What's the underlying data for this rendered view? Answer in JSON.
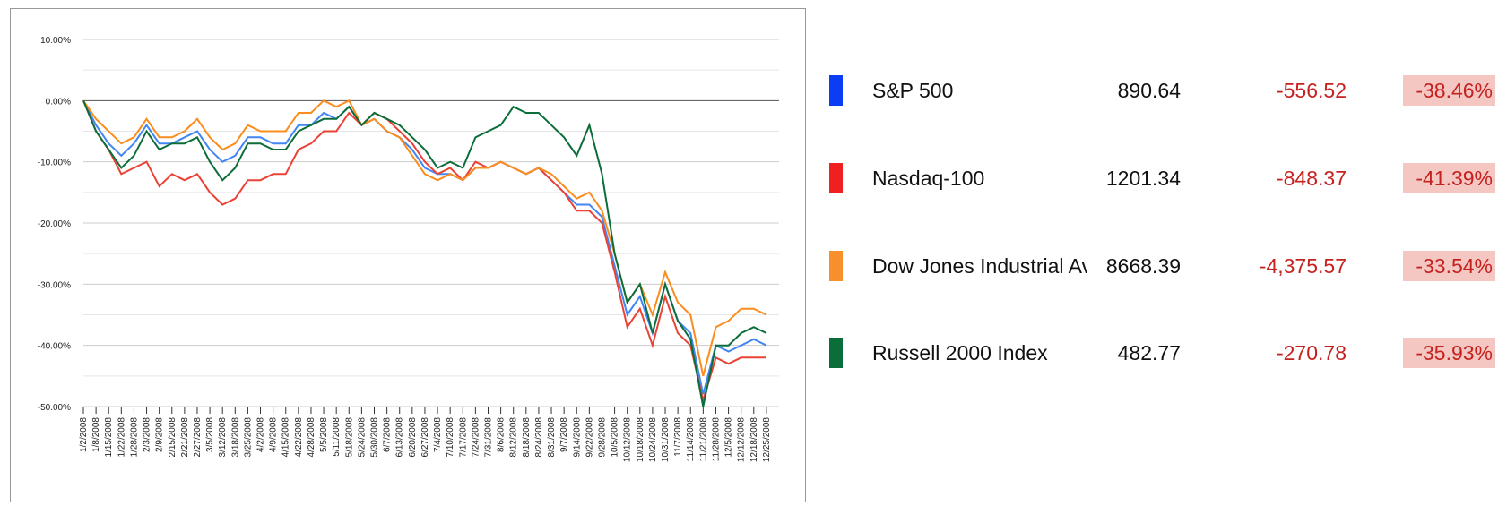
{
  "chart_data": {
    "type": "line",
    "categories": [
      "1/2/2008",
      "1/8/2008",
      "1/15/2008",
      "1/22/2008",
      "1/28/2008",
      "2/3/2008",
      "2/9/2008",
      "2/15/2008",
      "2/21/2008",
      "2/27/2008",
      "3/5/2008",
      "3/12/2008",
      "3/18/2008",
      "3/25/2008",
      "4/2/2008",
      "4/9/2008",
      "4/15/2008",
      "4/22/2008",
      "4/28/2008",
      "5/5/2008",
      "5/11/2008",
      "5/18/2008",
      "5/24/2008",
      "5/30/2008",
      "6/7/2008",
      "6/13/2008",
      "6/20/2008",
      "6/27/2008",
      "7/4/2008",
      "7/10/2008",
      "7/17/2008",
      "7/24/2008",
      "7/31/2008",
      "8/6/2008",
      "8/12/2008",
      "8/18/2008",
      "8/24/2008",
      "8/31/2008",
      "9/7/2008",
      "9/14/2008",
      "9/22/2008",
      "9/28/2008",
      "10/5/2008",
      "10/12/2008",
      "10/18/2008",
      "10/24/2008",
      "10/31/2008",
      "11/7/2008",
      "11/14/2008",
      "11/21/2008",
      "11/28/2008",
      "12/5/2008",
      "12/12/2008",
      "12/18/2008",
      "12/25/2008"
    ],
    "series": [
      {
        "color": "#4285f4",
        "values": [
          0,
          -4,
          -7,
          -9,
          -7,
          -4,
          -7,
          -7,
          -6,
          -5,
          -8,
          -10,
          -9,
          -6,
          -6,
          -7,
          -7,
          -4,
          -4,
          -2,
          -3,
          -1,
          -4,
          -3,
          -5,
          -6,
          -8,
          -11,
          -12,
          -12,
          -13,
          -11,
          -11,
          -10,
          -11,
          -12,
          -11,
          -13,
          -15,
          -17,
          -17,
          -19,
          -27,
          -35,
          -32,
          -38,
          -30,
          -36,
          -38,
          -48,
          -40,
          -41,
          -40,
          -39,
          -40
        ]
      },
      {
        "color": "#ea4335",
        "values": [
          0,
          -5,
          -8,
          -12,
          -11,
          -10,
          -14,
          -12,
          -13,
          -12,
          -15,
          -17,
          -16,
          -13,
          -13,
          -12,
          -12,
          -8,
          -7,
          -5,
          -5,
          -2,
          -4,
          -2,
          -3,
          -5,
          -7,
          -10,
          -12,
          -11,
          -13,
          -10,
          -11,
          -10,
          -11,
          -12,
          -11,
          -13,
          -15,
          -18,
          -18,
          -20,
          -28,
          -37,
          -34,
          -40,
          -32,
          -38,
          -40,
          -49,
          -42,
          -43,
          -42,
          -42,
          -42
        ]
      },
      {
        "color": "#fb8c1e",
        "values": [
          0,
          -3,
          -5,
          -7,
          -6,
          -3,
          -6,
          -6,
          -5,
          -3,
          -6,
          -8,
          -7,
          -4,
          -5,
          -5,
          -5,
          -2,
          -2,
          0,
          -1,
          0,
          -4,
          -3,
          -5,
          -6,
          -9,
          -12,
          -13,
          -12,
          -13,
          -11,
          -11,
          -10,
          -11,
          -12,
          -11,
          -12,
          -14,
          -16,
          -15,
          -18,
          -25,
          -33,
          -30,
          -35,
          -28,
          -33,
          -35,
          -45,
          -37,
          -36,
          -34,
          -34,
          -35
        ]
      },
      {
        "color": "#0b6e3a",
        "values": [
          0,
          -5,
          -8,
          -11,
          -9,
          -5,
          -8,
          -7,
          -7,
          -6,
          -10,
          -13,
          -11,
          -7,
          -7,
          -8,
          -8,
          -5,
          -4,
          -3,
          -3,
          -1,
          -4,
          -2,
          -3,
          -4,
          -6,
          -8,
          -11,
          -10,
          -11,
          -6,
          -5,
          -4,
          -1,
          -2,
          -2,
          -4,
          -6,
          -9,
          -4,
          -12,
          -25,
          -33,
          -30,
          -38,
          -30,
          -36,
          -39,
          -50,
          -40,
          -40,
          -38,
          -37,
          -38
        ]
      }
    ],
    "ylim": [
      -50,
      10
    ],
    "yticks": [
      {
        "value": 10,
        "label": "10.00%"
      },
      {
        "value": 0,
        "label": "0.00%"
      },
      {
        "value": -10,
        "label": "-10.00%"
      },
      {
        "value": -20,
        "label": "-20.00%"
      },
      {
        "value": -30,
        "label": "-30.00%"
      },
      {
        "value": -40,
        "label": "-40.00%"
      },
      {
        "value": -50,
        "label": "-50.00%"
      }
    ],
    "y_minor_ticks": [
      5,
      -5,
      -15,
      -25,
      -35,
      -45
    ],
    "grid": true
  },
  "table": {
    "rows": [
      {
        "color": "#0b3df5",
        "name": "S&P 500",
        "price": "890.64",
        "change": "-556.52",
        "percent": "-38.46%"
      },
      {
        "color": "#f02020",
        "name": "Nasdaq-100",
        "price": "1201.34",
        "change": "-848.37",
        "percent": "-41.39%"
      },
      {
        "color": "#f7902a",
        "name": "Dow Jones Industrial Average",
        "price": "8668.39",
        "change": "-4,375.57",
        "percent": "-33.54%"
      },
      {
        "color": "#0b6e3a",
        "name": "Russell 2000 Index",
        "price": "482.77",
        "change": "-270.78",
        "percent": "-35.93%"
      }
    ]
  }
}
